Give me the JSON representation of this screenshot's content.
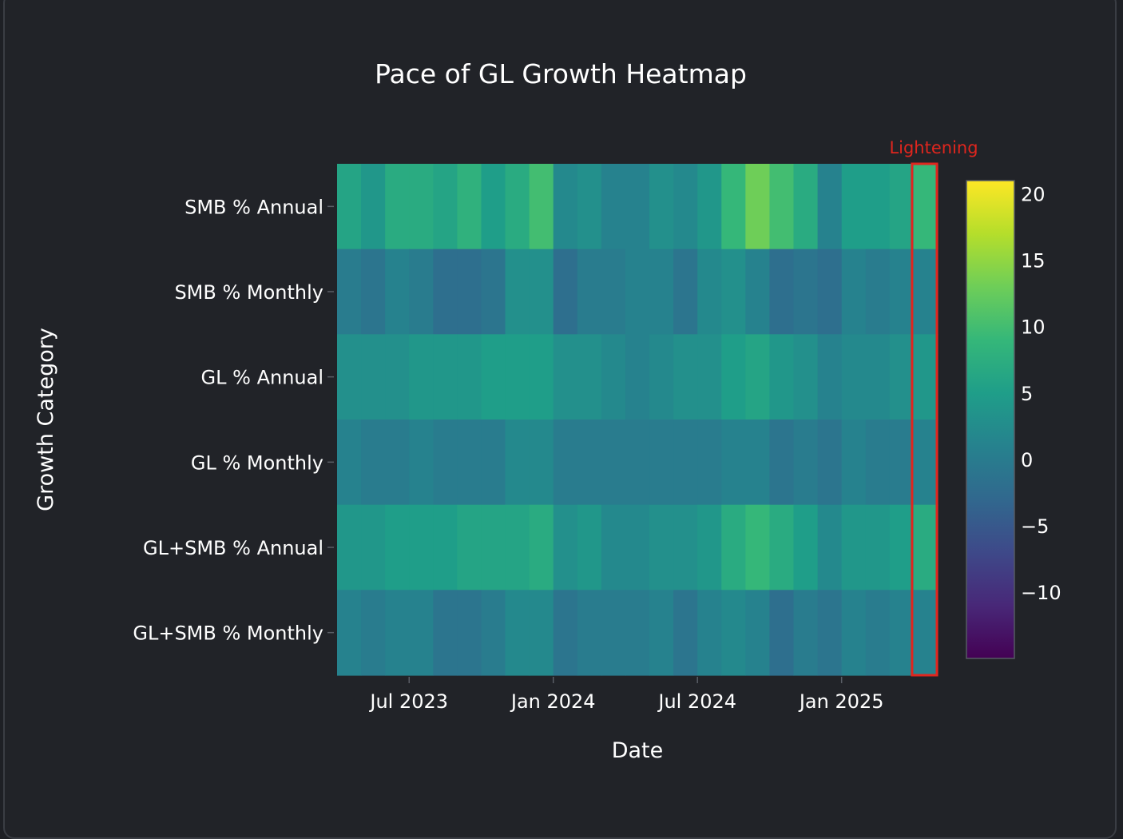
{
  "chart_data": {
    "type": "heatmap",
    "title": "Pace of GL Growth Heatmap",
    "xlabel": "Date",
    "ylabel": "Growth Category",
    "annotation": "Lightening",
    "x": [
      "2023-04",
      "2023-05",
      "2023-06",
      "2023-07",
      "2023-08",
      "2023-09",
      "2023-10",
      "2023-11",
      "2023-12",
      "2024-01",
      "2024-02",
      "2024-03",
      "2024-04",
      "2024-05",
      "2024-06",
      "2024-07",
      "2024-08",
      "2024-09",
      "2024-10",
      "2024-11",
      "2024-12",
      "2025-01",
      "2025-02",
      "2025-03",
      "2025-04"
    ],
    "x_ticks": [
      "Jul 2023",
      "Jan 2024",
      "Jul 2024",
      "Jan 2025"
    ],
    "categories": [
      "SMB % Annual",
      "SMB % Monthly",
      "GL % Annual",
      "GL % Monthly",
      "GL+SMB % Annual",
      "GL+SMB % Monthly"
    ],
    "z": [
      [
        6,
        4,
        7,
        7,
        6,
        8,
        5,
        7,
        10,
        2,
        3,
        1,
        1,
        3,
        2,
        4,
        9,
        13,
        10,
        7,
        1,
        5,
        5,
        6,
        9
      ],
      [
        0,
        -1,
        1,
        0,
        -2,
        -2,
        -1,
        3,
        3,
        -2,
        0,
        0,
        1,
        1,
        -1,
        2,
        3,
        1,
        -2,
        -1,
        -2,
        1,
        0,
        1,
        1
      ],
      [
        3,
        3,
        3,
        4,
        4,
        4,
        5,
        5,
        5,
        3,
        3,
        2,
        1,
        2,
        3,
        3,
        5,
        6,
        4,
        3,
        1,
        2,
        2,
        3,
        4
      ],
      [
        1,
        0,
        0,
        1,
        0,
        0,
        0,
        2,
        2,
        0,
        0,
        0,
        0,
        0,
        0,
        0,
        1,
        1,
        -1,
        0,
        -1,
        1,
        0,
        0,
        1
      ],
      [
        4,
        4,
        5,
        5,
        5,
        6,
        6,
        6,
        7,
        3,
        4,
        2,
        2,
        3,
        3,
        4,
        7,
        9,
        7,
        5,
        2,
        4,
        4,
        5,
        7
      ],
      [
        1,
        0,
        1,
        1,
        -1,
        -1,
        0,
        2,
        2,
        -1,
        0,
        0,
        0,
        1,
        -1,
        1,
        2,
        1,
        -2,
        0,
        -1,
        1,
        0,
        1,
        1
      ]
    ],
    "zmin": -15,
    "zmax": 21,
    "colorscale": "Viridis",
    "colorbar_ticks": [
      "20",
      "15",
      "10",
      "5",
      "0",
      "−5",
      "−10"
    ],
    "colorbar_tick_values": [
      20,
      15,
      10,
      5,
      0,
      -5,
      -10
    ],
    "highlight_color": "#e0261e",
    "annotation_color": "#e0261e"
  }
}
